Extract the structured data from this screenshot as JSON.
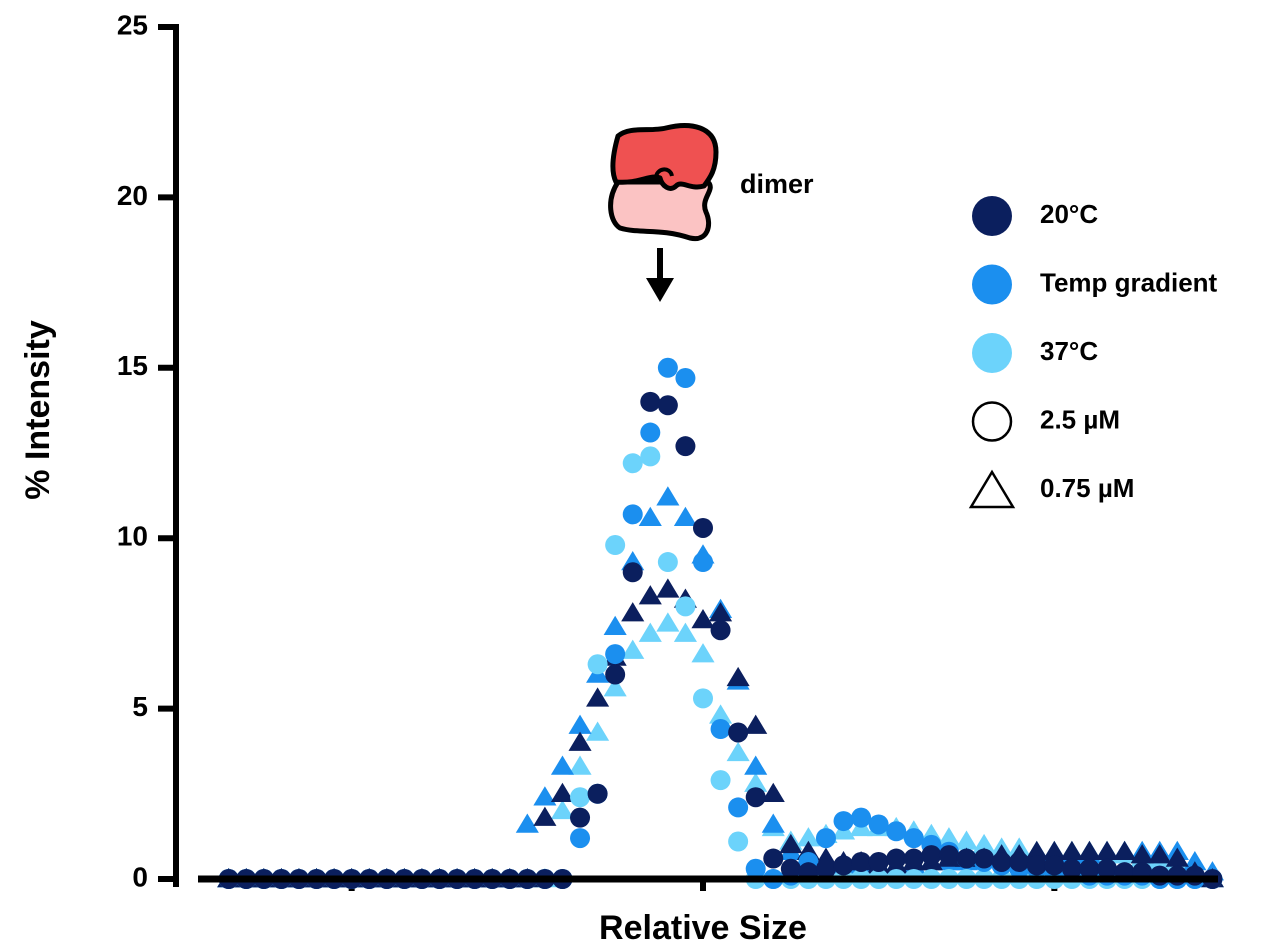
{
  "chart_data": {
    "type": "scatter",
    "x_label": "Relative Size",
    "y_label": "% Intensity",
    "annotation": "dimer",
    "xlim": [
      0,
      60
    ],
    "xticks": [
      10,
      30,
      50
    ],
    "ylim": [
      0,
      25
    ],
    "yticks": [
      0,
      5,
      10,
      15,
      20,
      25
    ],
    "legend": [
      {
        "label": "20°C",
        "color": "#0b1f5e",
        "marker": "circle"
      },
      {
        "label": "Temp gradient",
        "color": "#1b8fef",
        "marker": "circle"
      },
      {
        "label": "37°C",
        "color": "#6cd3fb",
        "marker": "circle"
      },
      {
        "label": "2.5 µM",
        "marker": "circle-open"
      },
      {
        "label": "0.75 µM",
        "marker": "triangle-open"
      }
    ],
    "x": [
      3,
      4,
      5,
      6,
      7,
      8,
      9,
      10,
      11,
      12,
      13,
      14,
      15,
      16,
      17,
      18,
      19,
      20,
      21,
      22,
      23,
      24,
      25,
      26,
      27,
      28,
      29,
      30,
      31,
      32,
      33,
      34,
      35,
      36,
      37,
      38,
      39,
      40,
      41,
      42,
      43,
      44,
      45,
      46,
      47,
      48,
      49,
      50,
      51,
      52,
      53,
      54,
      55,
      56,
      57,
      58,
      59
    ],
    "series": [
      {
        "color": "#6cd3fb",
        "marker": "triangle",
        "values": [
          0,
          0,
          0,
          0,
          0,
          0,
          0,
          0,
          0,
          0,
          0,
          0,
          0,
          0,
          0,
          0,
          0,
          0,
          0,
          2,
          3.3,
          4.3,
          5.6,
          6.7,
          7.2,
          7.5,
          7.2,
          6.6,
          4.8,
          3.7,
          2.8,
          1.5,
          1.1,
          1.2,
          1.3,
          1.4,
          1.5,
          1.5,
          1.5,
          1.4,
          1.3,
          1.2,
          1.1,
          1,
          0.9,
          0.9,
          0.8,
          0.8,
          0.8,
          0.8,
          0.7,
          0.7,
          0.6,
          0.5,
          0.4,
          0.2,
          0
        ]
      },
      {
        "color": "#1b8fef",
        "marker": "triangle",
        "values": [
          0,
          0,
          0,
          0,
          0,
          0,
          0,
          0,
          0,
          0,
          0,
          0,
          0,
          0,
          0,
          0,
          0,
          1.6,
          2.4,
          3.3,
          4.5,
          6,
          7.4,
          9.3,
          10.6,
          11.2,
          10.6,
          9.5,
          7.9,
          5.8,
          3.3,
          1.6,
          0.8,
          0.5,
          0.5,
          0.4,
          0.4,
          0.4,
          0.4,
          0.4,
          0.5,
          0.5,
          0.5,
          0.6,
          0.6,
          0.6,
          0.7,
          0.7,
          0.7,
          0.7,
          0.8,
          0.8,
          0.8,
          0.8,
          0.8,
          0.5,
          0.2
        ]
      },
      {
        "color": "#0b1f5e",
        "marker": "triangle",
        "values": [
          0,
          0,
          0,
          0,
          0,
          0,
          0,
          0,
          0,
          0,
          0,
          0,
          0,
          0,
          0,
          0,
          0,
          0,
          1.8,
          2.5,
          4,
          5.3,
          6.5,
          7.8,
          8.3,
          8.5,
          8.2,
          7.6,
          7.8,
          5.9,
          4.5,
          2.5,
          1,
          0.8,
          0.6,
          0.5,
          0.5,
          0.4,
          0.4,
          0.5,
          0.5,
          0.6,
          0.6,
          0.6,
          0.7,
          0.7,
          0.8,
          0.8,
          0.8,
          0.8,
          0.8,
          0.8,
          0.7,
          0.7,
          0.6,
          0.2,
          0
        ]
      },
      {
        "color": "#6cd3fb",
        "marker": "circle",
        "values": [
          0,
          0,
          0,
          0,
          0,
          0,
          0,
          0,
          0,
          0,
          0,
          0,
          0,
          0,
          0,
          0,
          0,
          0,
          0,
          0,
          2.4,
          6.3,
          9.8,
          12.2,
          12.4,
          9.3,
          8,
          5.3,
          2.9,
          1.1,
          0,
          0,
          0,
          0,
          0,
          0,
          0,
          0,
          0,
          0,
          0,
          0,
          0,
          0,
          0,
          0,
          0,
          0,
          0,
          0,
          0,
          0,
          0,
          0,
          0,
          0,
          0
        ]
      },
      {
        "color": "#1b8fef",
        "marker": "circle",
        "values": [
          0,
          0,
          0,
          0,
          0,
          0,
          0,
          0,
          0,
          0,
          0,
          0,
          0,
          0,
          0,
          0,
          0,
          0,
          0,
          0,
          1.2,
          2.5,
          6.6,
          10.7,
          13.1,
          15,
          14.7,
          9.3,
          4.4,
          2.1,
          0.3,
          0,
          0.1,
          0.5,
          1.2,
          1.7,
          1.8,
          1.6,
          1.4,
          1.2,
          1,
          0.8,
          0.6,
          0.5,
          0.4,
          0.3,
          0.3,
          0.2,
          0.2,
          0.1,
          0.1,
          0.1,
          0.1,
          0,
          0,
          0,
          0
        ]
      },
      {
        "color": "#0b1f5e",
        "marker": "circle",
        "values": [
          0,
          0,
          0,
          0,
          0,
          0,
          0,
          0,
          0,
          0,
          0,
          0,
          0,
          0,
          0,
          0,
          0,
          0,
          0,
          0,
          1.8,
          2.5,
          6,
          9,
          14,
          13.9,
          12.7,
          10.3,
          7.3,
          4.3,
          2.4,
          0.6,
          0.3,
          0.2,
          0.3,
          0.4,
          0.5,
          0.5,
          0.6,
          0.6,
          0.7,
          0.7,
          0.6,
          0.6,
          0.5,
          0.5,
          0.4,
          0.4,
          0.3,
          0.3,
          0.3,
          0.2,
          0.2,
          0.1,
          0.1,
          0.1,
          0
        ]
      }
    ]
  }
}
